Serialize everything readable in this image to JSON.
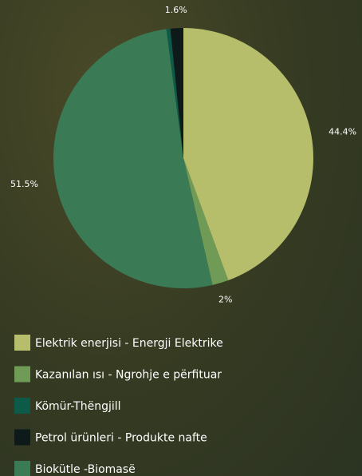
{
  "chart_data": {
    "type": "pie",
    "categories": [
      "Elektrik enerjisi - Energji Elektrike",
      "Kazanılan ısı - Ngrohje e përfituar",
      "Kömür-Thëngjill",
      "Petrol ürünleri - Produkte nafte",
      "Biokütle -Biomasë"
    ],
    "values": [
      44.4,
      2,
      0.5,
      1.6,
      51.5
    ],
    "value_labels": [
      "44.4%",
      "2%",
      null,
      "1.6%",
      "51.5%"
    ],
    "colors": [
      "#b6bd6b",
      "#6f9b57",
      "#0d5a48",
      "#0e1a19",
      "#3a7a55"
    ],
    "legend": "bottom"
  }
}
